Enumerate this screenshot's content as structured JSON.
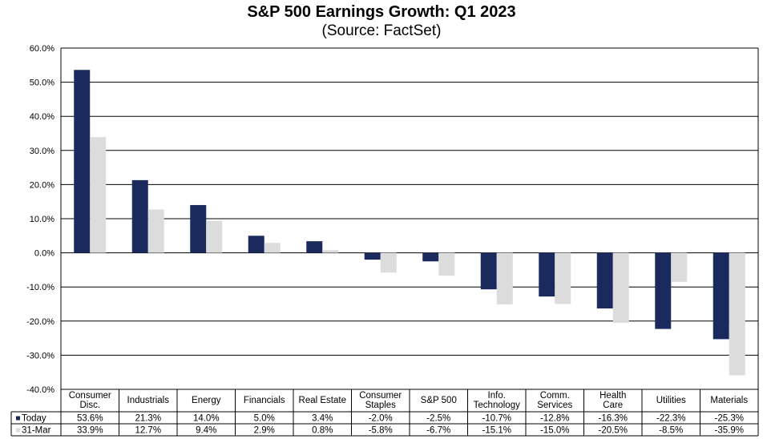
{
  "title": "S&P 500 Earnings Growth: Q1 2023",
  "subtitle": "(Source: FactSet)",
  "colors": {
    "today": "#1b2a5c",
    "mar31": "#dcdcdc"
  },
  "chart_data": {
    "type": "bar",
    "title": "S&P 500 Earnings Growth: Q1 2023",
    "subtitle": "(Source: FactSet)",
    "ylim": [
      -40,
      60
    ],
    "yticks": [
      "60.0%",
      "50.0%",
      "40.0%",
      "30.0%",
      "20.0%",
      "10.0%",
      "0.0%",
      "-10.0%",
      "-20.0%",
      "-30.0%",
      "-40.0%"
    ],
    "ytick_values": [
      60,
      50,
      40,
      30,
      20,
      10,
      0,
      -10,
      -20,
      -30,
      -40
    ],
    "categories": [
      [
        "Consumer",
        "Disc."
      ],
      [
        "Industrials"
      ],
      [
        "Energy"
      ],
      [
        "Financials"
      ],
      [
        "Real Estate"
      ],
      [
        "Consumer",
        "Staples"
      ],
      [
        "S&P 500"
      ],
      [
        "Info.",
        "Technology"
      ],
      [
        "Comm.",
        "Services"
      ],
      [
        "Health",
        "Care"
      ],
      [
        "Utilities"
      ],
      [
        "Materials"
      ]
    ],
    "series": [
      {
        "name": "Today",
        "values": [
          53.6,
          21.3,
          14.0,
          5.0,
          3.4,
          -2.0,
          -2.5,
          -10.7,
          -12.8,
          -16.3,
          -22.3,
          -25.3
        ],
        "labels": [
          "53.6%",
          "21.3%",
          "14.0%",
          "5.0%",
          "3.4%",
          "-2.0%",
          "-2.5%",
          "-10.7%",
          "-12.8%",
          "-16.3%",
          "-22.3%",
          "-25.3%"
        ]
      },
      {
        "name": "31-Mar",
        "values": [
          33.9,
          12.7,
          9.4,
          2.9,
          0.8,
          -5.8,
          -6.7,
          -15.1,
          -15.0,
          -20.5,
          -8.5,
          -35.9
        ],
        "labels": [
          "33.9%",
          "12.7%",
          "9.4%",
          "2.9%",
          "0.8%",
          "-5.8%",
          "-6.7%",
          "-15.1%",
          "-15.0%",
          "-20.5%",
          "-8.5%",
          "-35.9%"
        ]
      }
    ],
    "grid": true,
    "legend": "data-table"
  }
}
